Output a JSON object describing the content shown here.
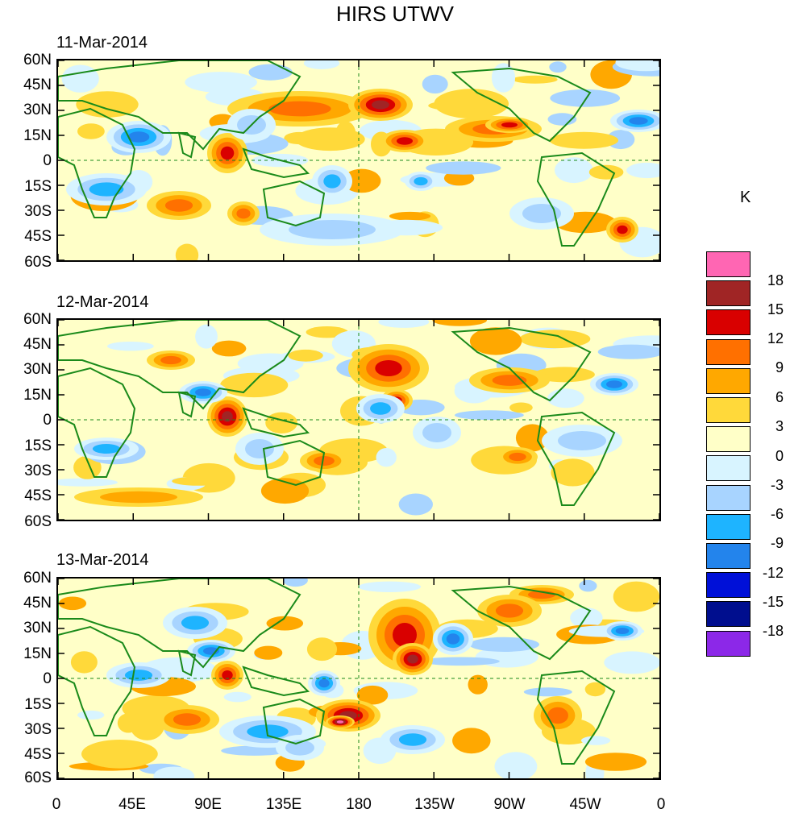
{
  "figure": {
    "title": "HIRS UTWV",
    "units": "K"
  },
  "panels": [
    {
      "date": "11-Mar-2014"
    },
    {
      "date": "12-Mar-2014"
    },
    {
      "date": "13-Mar-2014"
    }
  ],
  "axes": {
    "lat_ticks": [
      "60N",
      "45N",
      "30N",
      "15N",
      "0",
      "15S",
      "30S",
      "45S",
      "60S"
    ],
    "lon_ticks": [
      "0",
      "45E",
      "90E",
      "135E",
      "180",
      "135W",
      "90W",
      "45W",
      "0"
    ]
  },
  "colorbar": {
    "labels": [
      "18",
      "15",
      "12",
      "9",
      "6",
      "3",
      "0",
      "-3",
      "-6",
      "-9",
      "-12",
      "-15",
      "-18"
    ],
    "colors": [
      "#ff66b3",
      "#a02525",
      "#d90000",
      "#ff7000",
      "#ffa800",
      "#ffd93a",
      "#ffffc8",
      "#d8f4ff",
      "#a8d4ff",
      "#1eb4ff",
      "#2384ec",
      "#0010d8",
      "#000e8e",
      "#8c28e8"
    ]
  },
  "colors": {
    "coastline": "#1a8a1a",
    "equator": "#1a8a1a"
  }
}
